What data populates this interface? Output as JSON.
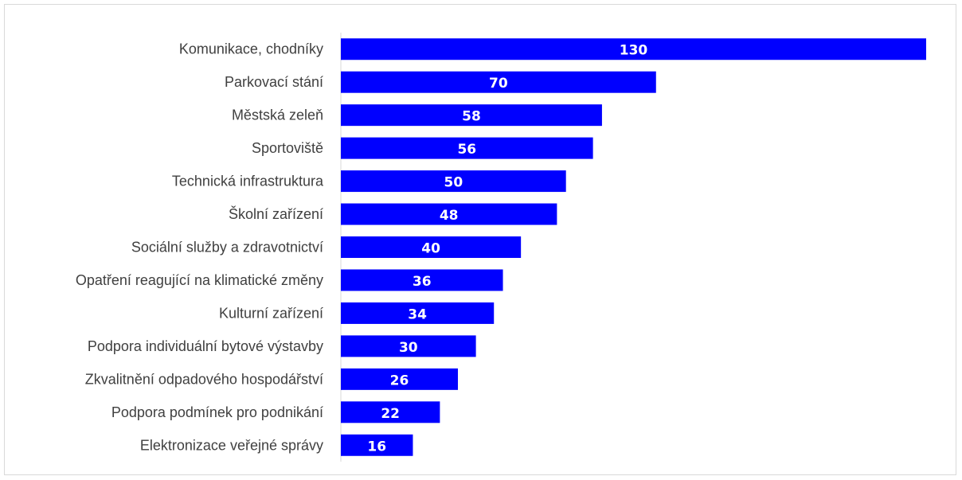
{
  "chart_data": {
    "type": "bar",
    "orientation": "horizontal",
    "categories": [
      "Komunikace, chodníky",
      "Parkovací stání",
      "Městská zeleň",
      "Sportoviště",
      "Technická infrastruktura",
      "Školní zařízení",
      "Sociální služby a zdravotnictví",
      "Opatření reagující na klimatické změny",
      "Kulturní zařízení",
      "Podpora individuální bytové výstavby",
      "Zkvalitnění odpadového hospodářství",
      "Podpora podmínek pro podnikání",
      "Elektronizace veřejné správy"
    ],
    "values": [
      130,
      70,
      58,
      56,
      50,
      48,
      40,
      36,
      34,
      30,
      26,
      22,
      16
    ],
    "xlim": [
      0,
      130
    ],
    "bar_color": "#0000ff",
    "value_label_color": "#ffffff",
    "grid": false,
    "legend": "none",
    "data_labels": true
  }
}
